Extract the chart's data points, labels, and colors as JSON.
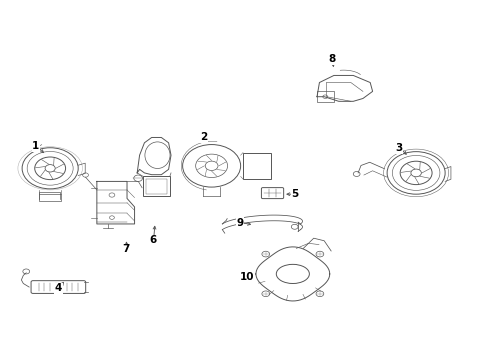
{
  "background_color": "#ffffff",
  "line_color": "#555555",
  "text_color": "#000000",
  "fig_width": 4.89,
  "fig_height": 3.6,
  "dpi": 100,
  "label_data": [
    [
      1,
      0.068,
      0.595,
      0.09,
      0.57
    ],
    [
      2,
      0.415,
      0.62,
      0.425,
      0.6
    ],
    [
      3,
      0.82,
      0.59,
      0.84,
      0.565
    ],
    [
      4,
      0.115,
      0.195,
      0.13,
      0.22
    ],
    [
      5,
      0.605,
      0.46,
      0.58,
      0.46
    ],
    [
      6,
      0.31,
      0.33,
      0.315,
      0.38
    ],
    [
      7,
      0.255,
      0.305,
      0.255,
      0.335
    ],
    [
      8,
      0.68,
      0.84,
      0.685,
      0.81
    ],
    [
      9,
      0.49,
      0.38,
      0.52,
      0.373
    ],
    [
      10,
      0.505,
      0.225,
      0.53,
      0.24
    ]
  ]
}
